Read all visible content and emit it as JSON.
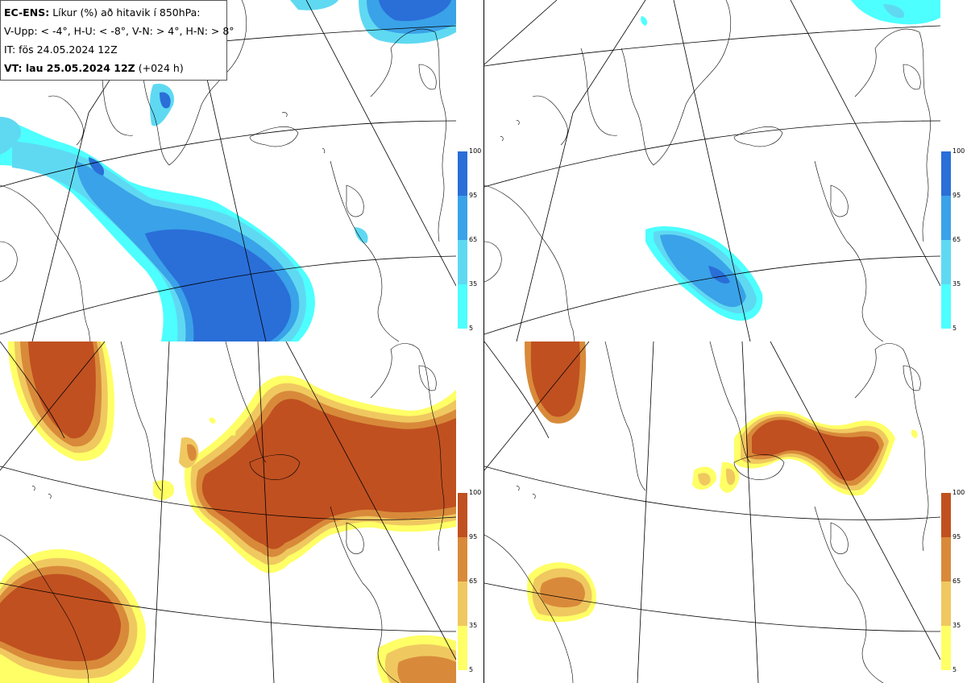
{
  "legend": {
    "model": "EC-ENS:",
    "title": "Líkur (%) að hitavik í 850hPa:",
    "thresholds": "V-Upp: < -4°, H-U: < -8°, V-N: > 4°, H-N: > 8°",
    "initial_time": "IT: fös 24.05.2024 12Z",
    "valid_label": "VT: lau 25.05.2024 12Z",
    "valid_offset": "(+024 h)"
  },
  "colorbar": {
    "ticks": [
      "100",
      "95",
      "65",
      "35",
      "5"
    ],
    "cold_colors": [
      "#4dffff",
      "#5fd9f2",
      "#3aa2e8",
      "#2a6ed8"
    ],
    "warm_colors": [
      "#ffff66",
      "#f0c860",
      "#d88a3a",
      "#c05020"
    ]
  },
  "panels": [
    {
      "name": "top-left",
      "variant": "cold",
      "threshold": "< -4°"
    },
    {
      "name": "top-right",
      "variant": "cold",
      "threshold": "< -8°"
    },
    {
      "name": "bottom-left",
      "variant": "warm",
      "threshold": "> 4°"
    },
    {
      "name": "bottom-right",
      "variant": "warm",
      "threshold": "> 8°"
    }
  ]
}
